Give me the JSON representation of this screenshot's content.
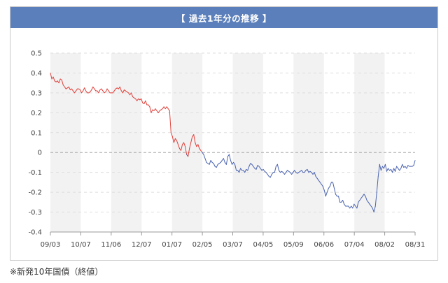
{
  "header": {
    "title": "【 過去1年分の推移 】"
  },
  "footnote": "※新発10年国債（終値）",
  "chart_data": {
    "type": "line",
    "title": "【 過去1年分の推移 】",
    "xlabel": "",
    "ylabel": "",
    "ylim": [
      -0.4,
      0.5
    ],
    "yticks": [
      0.5,
      0.4,
      0.3,
      0.2,
      0.1,
      0,
      -0.1,
      -0.2,
      -0.3,
      -0.4
    ],
    "ytick_labels": [
      "0.5",
      "0.4",
      "0.3",
      "0.2",
      "0.1",
      "0",
      "-0.1",
      "-0.2",
      "-0.3",
      "-0.4"
    ],
    "x_tick_labels": [
      "09/03",
      "10/07",
      "11/06",
      "12/07",
      "01/07",
      "02/05",
      "03/07",
      "04/05",
      "05/09",
      "06/06",
      "07/04",
      "08/02",
      "08/31"
    ],
    "grid": true,
    "zero_line": true,
    "legend": "none",
    "colors": {
      "positive": "#e0403a",
      "negative": "#4a63b0",
      "band": "#f2f2f2",
      "grid": "#dddddd",
      "title_bg": "#5b7fba"
    },
    "series": [
      {
        "values": [
          0.4,
          0.37,
          0.38,
          0.36,
          0.355,
          0.36,
          0.35,
          0.37,
          0.365,
          0.34,
          0.33,
          0.32,
          0.325,
          0.33,
          0.315,
          0.32,
          0.31,
          0.3,
          0.31,
          0.32,
          0.32,
          0.315,
          0.3,
          0.31,
          0.325,
          0.31,
          0.3,
          0.3,
          0.305,
          0.315,
          0.33,
          0.32,
          0.31,
          0.31,
          0.3,
          0.315,
          0.32,
          0.31,
          0.3,
          0.305,
          0.32,
          0.31,
          0.3,
          0.3,
          0.3,
          0.31,
          0.32,
          0.325,
          0.32,
          0.33,
          0.31,
          0.3,
          0.315,
          0.31,
          0.305,
          0.3,
          0.29,
          0.3,
          0.28,
          0.275,
          0.27,
          0.26,
          0.27,
          0.265,
          0.27,
          0.25,
          0.245,
          0.26,
          0.24,
          0.24,
          0.23,
          0.2,
          0.215,
          0.21,
          0.22,
          0.21,
          0.2,
          0.21,
          0.215,
          0.22,
          0.23,
          0.22,
          0.23,
          0.22,
          0.21,
          0.1,
          0.08,
          0.05,
          0.07,
          0.06,
          0.04,
          0.02,
          0.01,
          0.04,
          0.05,
          0.03,
          -0.01,
          -0.02,
          0.02,
          0.05,
          0.08,
          0.09,
          0.05,
          0.03,
          0.04,
          0.02,
          0.01,
          0.0,
          -0.01,
          -0.03,
          -0.05,
          -0.055,
          -0.06,
          -0.04,
          -0.05,
          -0.055,
          -0.07,
          -0.075,
          -0.06,
          -0.055,
          -0.05,
          -0.04,
          -0.03,
          -0.05,
          -0.06,
          -0.02,
          -0.01,
          -0.04,
          -0.06,
          -0.05,
          -0.06,
          -0.09,
          -0.09,
          -0.1,
          -0.08,
          -0.09,
          -0.09,
          -0.1,
          -0.085,
          -0.09,
          -0.07,
          -0.055,
          -0.06,
          -0.07,
          -0.08,
          -0.085,
          -0.065,
          -0.07,
          -0.08,
          -0.09,
          -0.085,
          -0.095,
          -0.1,
          -0.11,
          -0.12,
          -0.125,
          -0.11,
          -0.1,
          -0.1,
          -0.07,
          -0.06,
          -0.09,
          -0.1,
          -0.095,
          -0.1,
          -0.11,
          -0.1,
          -0.09,
          -0.095,
          -0.1,
          -0.11,
          -0.1,
          -0.09,
          -0.1,
          -0.105,
          -0.1,
          -0.095,
          -0.09,
          -0.1,
          -0.1,
          -0.09,
          -0.085,
          -0.1,
          -0.095,
          -0.1,
          -0.11,
          -0.1,
          -0.12,
          -0.13,
          -0.14,
          -0.15,
          -0.16,
          -0.17,
          -0.19,
          -0.22,
          -0.2,
          -0.18,
          -0.17,
          -0.15,
          -0.15,
          -0.18,
          -0.21,
          -0.22,
          -0.22,
          -0.25,
          -0.25,
          -0.24,
          -0.26,
          -0.27,
          -0.27,
          -0.27,
          -0.28,
          -0.27,
          -0.28,
          -0.26,
          -0.27,
          -0.28,
          -0.25,
          -0.24,
          -0.23,
          -0.22,
          -0.21,
          -0.22,
          -0.24,
          -0.25,
          -0.26,
          -0.27,
          -0.28,
          -0.3,
          -0.27,
          -0.2,
          -0.12,
          -0.06,
          -0.09,
          -0.07,
          -0.08,
          -0.06,
          -0.095,
          -0.08,
          -0.09,
          -0.085,
          -0.1,
          -0.08,
          -0.095,
          -0.07,
          -0.08,
          -0.09,
          -0.08,
          -0.06,
          -0.075,
          -0.07,
          -0.08,
          -0.065,
          -0.07,
          -0.07,
          -0.07,
          -0.065,
          -0.04
        ]
      }
    ]
  }
}
